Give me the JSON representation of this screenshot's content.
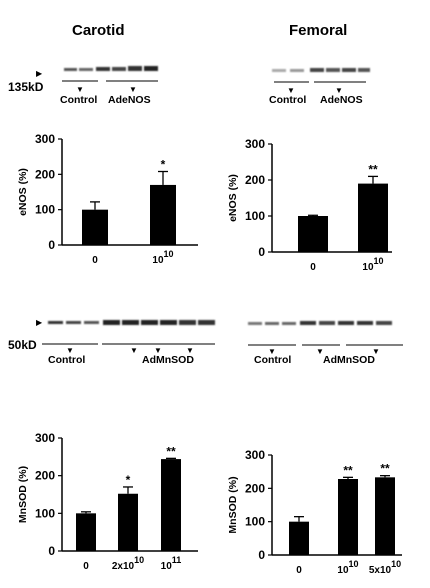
{
  "headers": {
    "left": "Carotid",
    "right": "Femoral"
  },
  "blots": {
    "top": {
      "kd_label": "135kD",
      "carotid": {
        "control": "Control",
        "treatment": "AdeNOS"
      },
      "femoral": {
        "control": "Control",
        "treatment": "AdeNOS"
      }
    },
    "bottom": {
      "kd_label": "50kD",
      "carotid": {
        "control": "Control",
        "treatment": "AdMnSOD"
      },
      "femoral": {
        "control": "Control",
        "treatment": "AdMnSOD"
      }
    }
  },
  "chart_data": [
    {
      "type": "bar",
      "panel": "carotid-enos",
      "categories": [
        "0",
        "10^10"
      ],
      "values": [
        100,
        170
      ],
      "errors": [
        22,
        38
      ],
      "significance": [
        "",
        "*"
      ],
      "ylabel": "eNOS (%)",
      "ylim": [
        0,
        300
      ],
      "yticks": [
        0,
        100,
        200,
        300
      ]
    },
    {
      "type": "bar",
      "panel": "femoral-enos",
      "categories": [
        "0",
        "10^10"
      ],
      "values": [
        100,
        190
      ],
      "errors": [
        2,
        20
      ],
      "significance": [
        "",
        "**"
      ],
      "ylabel": "eNOS (%)",
      "ylim": [
        0,
        300
      ],
      "yticks": [
        0,
        100,
        200,
        300
      ]
    },
    {
      "type": "bar",
      "panel": "carotid-mnsod",
      "categories": [
        "0",
        "2x10^10",
        "10^11"
      ],
      "values": [
        100,
        152,
        244
      ],
      "errors": [
        4,
        18,
        2
      ],
      "significance": [
        "",
        "*",
        "**"
      ],
      "ylabel": "MnSOD (%)",
      "ylim": [
        0,
        300
      ],
      "yticks": [
        0,
        100,
        200,
        300
      ]
    },
    {
      "type": "bar",
      "panel": "femoral-mnsod",
      "categories": [
        "0",
        "10^10",
        "5x10^10"
      ],
      "values": [
        100,
        228,
        233
      ],
      "errors": [
        15,
        5,
        5
      ],
      "significance": [
        "",
        "**",
        "**"
      ],
      "ylabel": "MnSOD (%)",
      "ylim": [
        0,
        300
      ],
      "yticks": [
        0,
        100,
        200,
        300
      ]
    }
  ]
}
